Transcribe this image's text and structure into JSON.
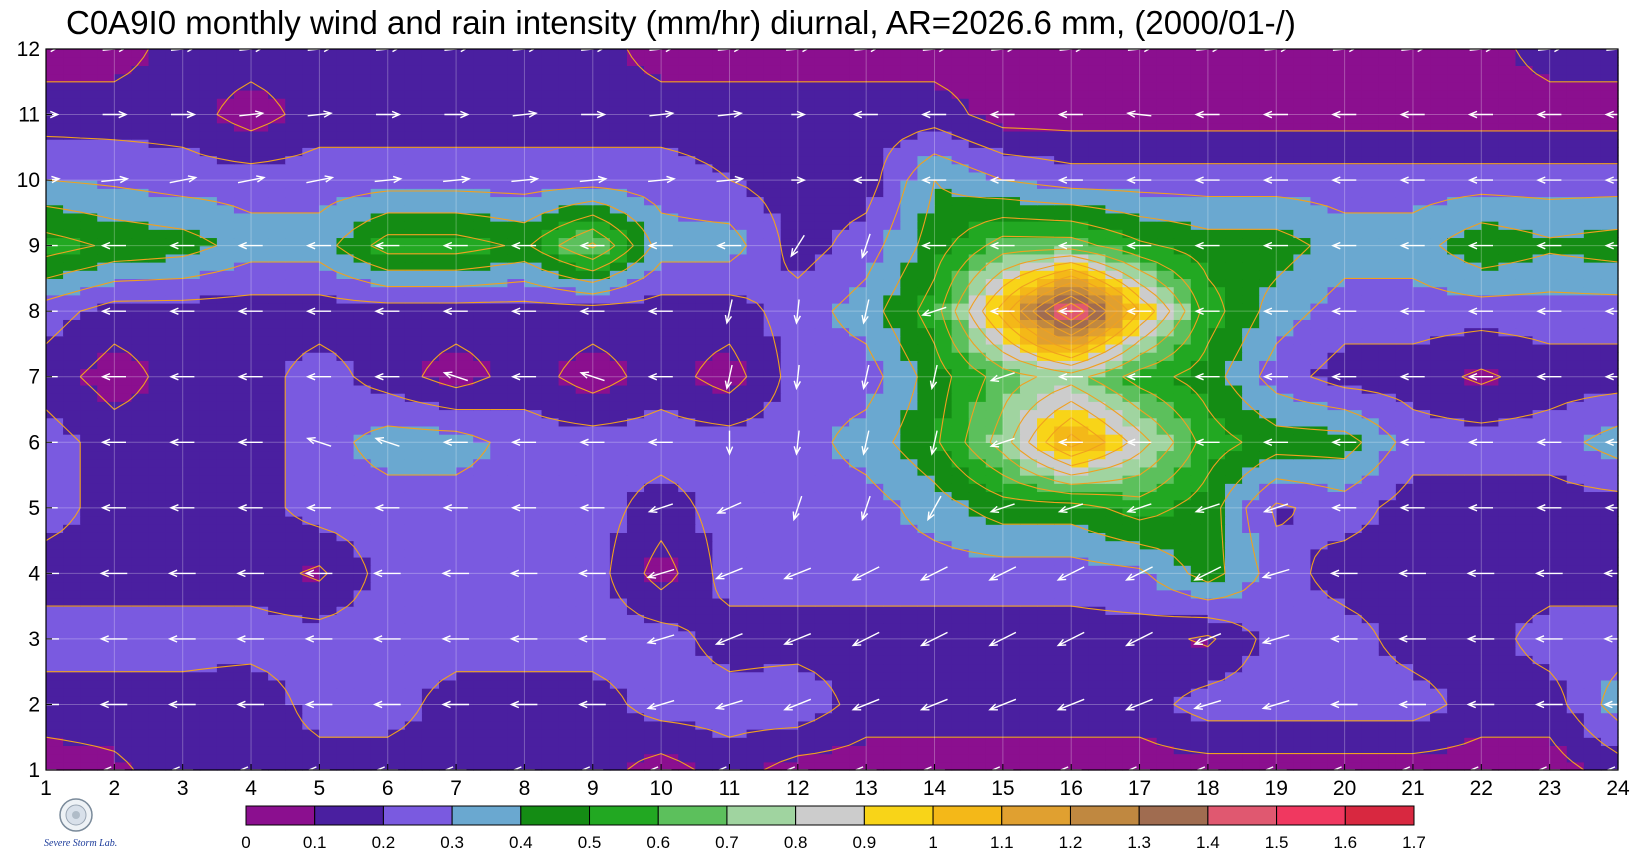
{
  "chart_data": {
    "type": "heatmap",
    "title": "C0A9I0 monthly wind and rain intensity (mm/hr) diurnal, AR=2026.6 mm, (2000/01-/)",
    "x_ticks": [
      1,
      2,
      3,
      4,
      5,
      6,
      7,
      8,
      9,
      10,
      11,
      12,
      13,
      14,
      15,
      16,
      17,
      18,
      19,
      20,
      21,
      22,
      23,
      24
    ],
    "y_ticks": [
      1,
      2,
      3,
      4,
      5,
      6,
      7,
      8,
      9,
      10,
      11,
      12
    ],
    "xlim": [
      1,
      24
    ],
    "ylim": [
      1,
      12
    ],
    "contour_levels": [
      0,
      0.1,
      0.2,
      0.3,
      0.4,
      0.5,
      0.6,
      0.7,
      0.8,
      0.9,
      1,
      1.1,
      1.2,
      1.3,
      1.4,
      1.5,
      1.6,
      1.7
    ],
    "colorbar_labels": [
      "0",
      "0.1",
      "0.2",
      "0.3",
      "0.4",
      "0.5",
      "0.6",
      "0.7",
      "0.8",
      "0.9",
      "1",
      "1.1",
      "1.2",
      "1.3",
      "1.4",
      "1.5",
      "1.6",
      "1.7"
    ],
    "colorbar_colors": [
      "#8b0f8f",
      "#4a1fa0",
      "#7a5ae0",
      "#6aa8d0",
      "#148c14",
      "#22a822",
      "#5cc05c",
      "#a0d4a0",
      "#cccccc",
      "#f8d418",
      "#f4b818",
      "#e0a030",
      "#c08840",
      "#a06c50",
      "#e05870",
      "#f03860",
      "#d82840"
    ],
    "contour_line_color": "#f0a020",
    "grid": true,
    "arrows": true,
    "rows": [
      [
        0.05,
        0.08,
        0.15,
        0.15,
        0.15,
        0.15,
        0.15,
        0.15,
        0.15,
        0.05,
        0.15,
        0.05,
        0.05,
        0.05,
        0.05,
        0.05,
        0.05,
        0.05,
        0.05,
        0.05,
        0.05,
        0.05,
        0.05,
        0.15
      ],
      [
        0.15,
        0.15,
        0.15,
        0.12,
        0.25,
        0.25,
        0.15,
        0.15,
        0.15,
        0.25,
        0.25,
        0.28,
        0.15,
        0.15,
        0.15,
        0.15,
        0.15,
        0.25,
        0.25,
        0.25,
        0.25,
        0.15,
        0.15,
        0.35
      ],
      [
        0.25,
        0.25,
        0.25,
        0.25,
        0.25,
        0.25,
        0.25,
        0.25,
        0.25,
        0.25,
        0.15,
        0.15,
        0.15,
        0.15,
        0.15,
        0.15,
        0.15,
        0.08,
        0.25,
        0.25,
        0.15,
        0.15,
        0.25,
        0.25
      ],
      [
        0.15,
        0.15,
        0.15,
        0.15,
        0.08,
        0.25,
        0.25,
        0.25,
        0.25,
        0.05,
        0.25,
        0.25,
        0.25,
        0.25,
        0.25,
        0.25,
        0.28,
        0.45,
        0.25,
        0.15,
        0.15,
        0.15,
        0.15,
        0.15
      ],
      [
        0.25,
        0.15,
        0.15,
        0.15,
        0.25,
        0.25,
        0.25,
        0.25,
        0.25,
        0.15,
        0.25,
        0.25,
        0.25,
        0.35,
        0.45,
        0.45,
        0.55,
        0.45,
        0.18,
        0.25,
        0.15,
        0.15,
        0.15,
        0.15
      ],
      [
        0.25,
        0.15,
        0.15,
        0.15,
        0.25,
        0.35,
        0.35,
        0.25,
        0.25,
        0.25,
        0.25,
        0.25,
        0.35,
        0.48,
        0.75,
        1.15,
        0.85,
        0.55,
        0.45,
        0.45,
        0.25,
        0.25,
        0.25,
        0.35
      ],
      [
        0.15,
        0.05,
        0.15,
        0.15,
        0.25,
        0.15,
        0.05,
        0.15,
        0.05,
        0.15,
        0.05,
        0.25,
        0.25,
        0.45,
        0.65,
        0.75,
        0.55,
        0.45,
        0.25,
        0.15,
        0.15,
        0.08,
        0.15,
        0.15
      ],
      [
        0.25,
        0.15,
        0.15,
        0.15,
        0.15,
        0.15,
        0.15,
        0.15,
        0.15,
        0.15,
        0.15,
        0.25,
        0.35,
        0.55,
        1.05,
        1.62,
        1.0,
        0.55,
        0.35,
        0.25,
        0.25,
        0.25,
        0.25,
        0.25
      ],
      [
        0.55,
        0.48,
        0.45,
        0.35,
        0.35,
        0.55,
        0.55,
        0.48,
        0.72,
        0.35,
        0.35,
        0.15,
        0.25,
        0.45,
        0.65,
        0.65,
        0.52,
        0.45,
        0.45,
        0.35,
        0.35,
        0.48,
        0.42,
        0.45
      ],
      [
        0.3,
        0.28,
        0.25,
        0.25,
        0.25,
        0.25,
        0.25,
        0.25,
        0.25,
        0.25,
        0.2,
        0.15,
        0.15,
        0.4,
        0.3,
        0.25,
        0.25,
        0.25,
        0.25,
        0.25,
        0.25,
        0.25,
        0.25,
        0.25
      ],
      [
        0.15,
        0.15,
        0.15,
        0.05,
        0.15,
        0.15,
        0.15,
        0.15,
        0.15,
        0.15,
        0.15,
        0.15,
        0.15,
        0.15,
        0.05,
        0.05,
        0.05,
        0.05,
        0.05,
        0.05,
        0.05,
        0.05,
        0.05,
        0.05
      ],
      [
        0.05,
        0.05,
        0.15,
        0.15,
        0.15,
        0.15,
        0.15,
        0.15,
        0.15,
        0.05,
        0.05,
        0.05,
        0.05,
        0.05,
        0.05,
        0.05,
        0.05,
        0.05,
        0.05,
        0.05,
        0.05,
        0.05,
        0.15,
        0.15
      ]
    ],
    "wind_u": [
      [
        -0.8,
        -0.8,
        -0.8,
        -0.8,
        -0.8,
        -0.8,
        -0.8,
        -0.8,
        -0.8,
        -0.8,
        -0.8,
        -0.8,
        -0.8,
        -0.8,
        -0.8,
        -0.8,
        -0.8,
        -0.8,
        -0.8,
        -0.8,
        -0.8,
        -0.8,
        -0.8,
        -0.8
      ],
      [
        -1.0,
        -1.0,
        -1.0,
        -1.0,
        -1.0,
        -1.0,
        -1.0,
        -1.0,
        -1.0,
        -1.0,
        -1.0,
        -1.0,
        -1.0,
        -1.0,
        -1.0,
        -1.0,
        -1.0,
        -1.0,
        -1.0,
        -1.0,
        -1.0,
        -1.0,
        -1.0,
        -1.0
      ],
      [
        -1.0,
        -1.0,
        -1.0,
        -1.0,
        -1.0,
        -1.0,
        -1.0,
        -1.0,
        -1.0,
        -1.0,
        -1.0,
        -1.0,
        -1.0,
        -1.0,
        -1.0,
        -1.0,
        -1.0,
        -1.0,
        -1.0,
        -1.0,
        -1.0,
        -1.0,
        -1.0,
        -1.0
      ],
      [
        -1.0,
        -1.0,
        -1.0,
        -1.0,
        -1.0,
        -1.0,
        -1.0,
        -1.0,
        -1.0,
        -1.0,
        -1.0,
        -1.0,
        -1.0,
        -1.0,
        -1.0,
        -1.0,
        -1.0,
        -1.0,
        -1.0,
        -1.0,
        -1.0,
        -1.0,
        -1.0,
        -1.0
      ],
      [
        -0.9,
        -0.9,
        -0.9,
        -0.9,
        -0.9,
        -0.9,
        -0.9,
        -0.9,
        -0.9,
        -0.9,
        -0.9,
        -0.3,
        -0.3,
        -0.5,
        -0.9,
        -0.9,
        -0.9,
        -0.9,
        -0.9,
        -0.9,
        -0.9,
        -0.9,
        -0.9,
        -0.9
      ],
      [
        -0.9,
        -0.9,
        -0.9,
        -0.9,
        -0.9,
        -0.9,
        -0.9,
        -0.9,
        -0.9,
        -0.9,
        0.0,
        -0.1,
        -0.2,
        -0.2,
        -0.9,
        -0.9,
        -0.9,
        -0.9,
        -0.9,
        -0.9,
        -0.9,
        -0.9,
        -0.9,
        -0.9
      ],
      [
        -0.9,
        -0.9,
        -0.9,
        -0.9,
        -0.9,
        -0.9,
        -0.9,
        -0.9,
        -0.9,
        -0.9,
        -0.2,
        -0.1,
        -0.2,
        -0.2,
        -0.9,
        -0.9,
        -0.9,
        -0.9,
        -0.9,
        -0.9,
        -0.9,
        -0.9,
        -0.9,
        -0.9
      ],
      [
        -0.9,
        -0.9,
        -0.9,
        -0.9,
        -0.9,
        -0.9,
        -0.9,
        -0.9,
        -0.9,
        -0.9,
        -0.2,
        -0.1,
        -0.2,
        -0.9,
        -0.9,
        -0.9,
        -0.9,
        -0.9,
        -0.9,
        -0.9,
        -0.9,
        -0.9,
        -0.9,
        -0.9
      ],
      [
        -0.9,
        -0.9,
        -0.9,
        -0.9,
        -0.9,
        -0.9,
        -0.9,
        -0.9,
        -0.9,
        -0.9,
        -0.9,
        -0.5,
        -0.3,
        -0.9,
        -0.9,
        -0.9,
        -0.9,
        -0.9,
        -0.9,
        -0.9,
        -0.9,
        -0.9,
        -0.9,
        -0.9
      ],
      [
        1.0,
        1.0,
        1.0,
        1.0,
        1.0,
        1.0,
        1.0,
        1.0,
        1.0,
        1.0,
        1.0,
        0.5,
        -0.9,
        -0.9,
        -0.9,
        -0.9,
        -0.9,
        -0.9,
        -0.9,
        -0.9,
        -0.9,
        -0.9,
        -0.9,
        -0.9
      ],
      [
        0.9,
        0.9,
        0.9,
        0.9,
        0.9,
        0.9,
        0.9,
        0.9,
        0.9,
        0.9,
        0.9,
        0.5,
        -0.9,
        -0.9,
        -0.9,
        -0.9,
        -0.9,
        -0.9,
        -0.9,
        -0.9,
        -0.9,
        -0.9,
        -0.9,
        -0.9
      ],
      [
        0.9,
        0.9,
        0.9,
        0.9,
        0.9,
        0.9,
        0.9,
        0.9,
        0.9,
        0.9,
        0.9,
        0.9,
        0.9,
        0.9,
        0.9,
        0.9,
        0.9,
        0.9,
        0.9,
        0.9,
        0.9,
        0.9,
        0.9,
        0.9
      ]
    ],
    "wind_v": [
      [
        0.0,
        0.0,
        0.0,
        0.0,
        0.0,
        0.0,
        0.0,
        0.0,
        0.0,
        0.0,
        0.0,
        0.0,
        0.0,
        0.0,
        0.0,
        0.0,
        0.0,
        0.0,
        0.0,
        0.0,
        0.0,
        0.0,
        0.0,
        0.0
      ],
      [
        0.0,
        0.0,
        0.0,
        0.0,
        0.0,
        0.0,
        0.0,
        0.0,
        0.0,
        -0.3,
        -0.3,
        -0.4,
        -0.4,
        -0.4,
        -0.4,
        -0.4,
        -0.4,
        -0.3,
        -0.3,
        0.0,
        0.0,
        0.0,
        0.0,
        0.0
      ],
      [
        0.0,
        0.0,
        0.0,
        0.0,
        0.0,
        0.0,
        0.0,
        0.0,
        0.0,
        -0.3,
        -0.4,
        -0.4,
        -0.5,
        -0.5,
        -0.5,
        -0.5,
        -0.5,
        -0.4,
        -0.3,
        0.0,
        0.0,
        0.0,
        0.0,
        0.0
      ],
      [
        0.0,
        0.0,
        0.0,
        0.0,
        0.0,
        0.0,
        0.0,
        0.0,
        0.0,
        -0.3,
        -0.4,
        -0.4,
        -0.5,
        -0.5,
        -0.5,
        -0.5,
        -0.5,
        -0.5,
        -0.3,
        0.0,
        0.0,
        0.0,
        0.0,
        0.0
      ],
      [
        0.0,
        0.0,
        0.0,
        0.0,
        0.0,
        0.0,
        0.0,
        0.0,
        0.0,
        -0.3,
        -0.4,
        -0.9,
        -0.9,
        -0.9,
        -0.3,
        -0.3,
        -0.3,
        -0.3,
        -0.3,
        0.0,
        0.0,
        0.0,
        0.0,
        0.0
      ],
      [
        0.0,
        0.0,
        0.0,
        0.0,
        0.3,
        0.3,
        0.0,
        0.0,
        0.0,
        0.0,
        -0.9,
        -0.9,
        -0.9,
        -0.9,
        -0.3,
        0.0,
        0.0,
        0.0,
        0.0,
        0.0,
        0.0,
        0.0,
        0.0,
        0.0
      ],
      [
        0.0,
        0.0,
        0.0,
        0.0,
        0.0,
        0.0,
        0.3,
        0.0,
        0.3,
        0.0,
        -0.9,
        -0.9,
        -0.9,
        -0.9,
        -0.3,
        0.0,
        0.0,
        0.0,
        0.0,
        0.0,
        0.0,
        0.0,
        0.0,
        0.0
      ],
      [
        0.0,
        0.0,
        0.0,
        0.0,
        0.0,
        0.0,
        0.0,
        0.0,
        0.0,
        0.0,
        -0.9,
        -0.9,
        -0.9,
        -0.3,
        0.0,
        0.0,
        0.0,
        0.0,
        0.0,
        0.0,
        0.0,
        0.0,
        0.0,
        0.0
      ],
      [
        0.0,
        0.0,
        0.0,
        0.0,
        0.0,
        0.0,
        0.0,
        0.0,
        0.0,
        0.0,
        0.0,
        -0.8,
        -0.9,
        0.0,
        0.0,
        0.0,
        0.0,
        0.0,
        0.0,
        0.0,
        0.0,
        0.0,
        0.0,
        0.0
      ],
      [
        0.1,
        0.1,
        0.2,
        0.2,
        0.2,
        0.1,
        0.1,
        0.1,
        0.1,
        0.1,
        0.1,
        0.0,
        0.0,
        0.0,
        0.0,
        0.0,
        0.0,
        0.0,
        0.0,
        0.0,
        0.0,
        0.0,
        0.0,
        0.0
      ],
      [
        0.0,
        0.0,
        0.0,
        0.1,
        0.1,
        0.0,
        0.0,
        0.1,
        0.0,
        0.1,
        0.1,
        0.0,
        0.0,
        0.0,
        0.0,
        0.0,
        0.1,
        0.0,
        0.0,
        0.0,
        0.0,
        0.0,
        0.0,
        0.0
      ],
      [
        0.1,
        0.1,
        0.1,
        0.1,
        0.1,
        0.1,
        0.1,
        0.1,
        0.1,
        0.1,
        0.1,
        0.1,
        0.1,
        0.1,
        0.1,
        0.1,
        0.1,
        0.1,
        0.1,
        0.1,
        0.1,
        0.1,
        0.1,
        0.1
      ]
    ]
  },
  "logo": {
    "text": "Severe Storm Lab."
  }
}
